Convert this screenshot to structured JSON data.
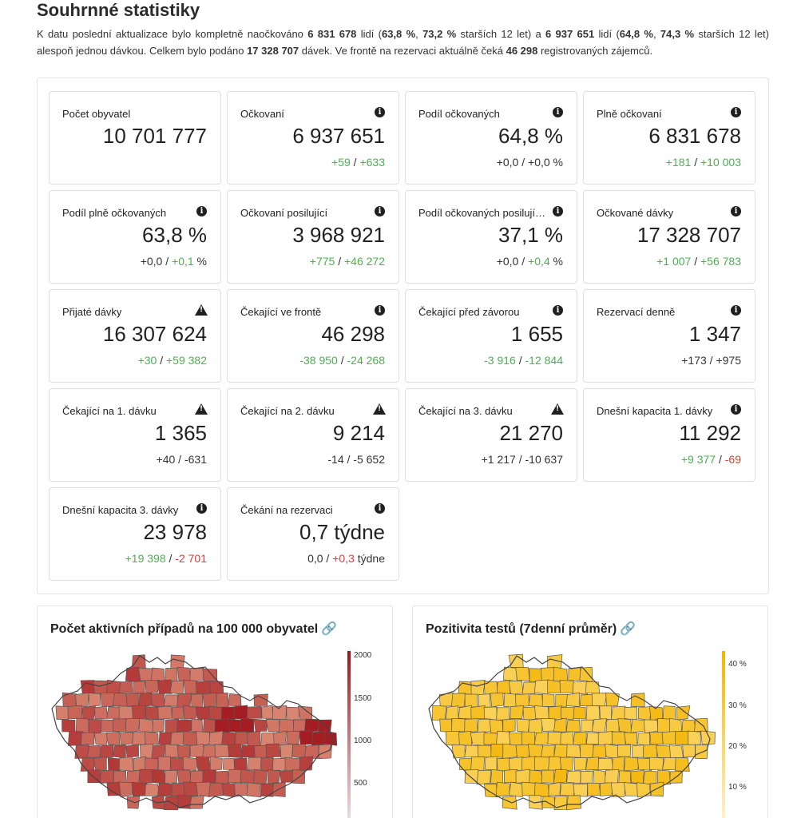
{
  "page": {
    "title": "Souhrnné statistiky"
  },
  "intro": {
    "t1": "K datu poslední aktualizace bylo kompletně naočkováno ",
    "fully": "6 831 678",
    "t2": " lidí (",
    "fully_pct": "63,8 %",
    "t3": ", ",
    "fully_pct12": "73,2 %",
    "t4": " starších 12 let) a ",
    "vacc": "6 937 651",
    "t5": " lidí (",
    "vacc_pct": "64,8 %",
    "t6": ", ",
    "vacc_pct12": "74,3 %",
    "t7": " starších 12 let) alespoň jednou dávkou. Celkem bylo podáno ",
    "doses": "17 328 707",
    "t8": " dávek. Ve frontě na rezervaci aktuálně čeká ",
    "queue": "46 298",
    "t9": " registrovaných zájemců."
  },
  "cards": [
    {
      "label": "Počet obyvatel",
      "icon": "none",
      "value": "10 701 777",
      "d1": "",
      "d1c": "n",
      "sep": "",
      "d2": "",
      "d2c": "n"
    },
    {
      "label": "Očkovaní",
      "icon": "info",
      "value": "6 937 651",
      "d1": "+59",
      "d1c": "g",
      "sep": " / ",
      "d2": "+633",
      "d2c": "g"
    },
    {
      "label": "Podíl očkovaných",
      "icon": "info",
      "value": "64,8 %",
      "d1": "+0,0",
      "d1c": "n",
      "sep": " / ",
      "d2": "+0,0 %",
      "d2c": "n"
    },
    {
      "label": "Plně očkovaní",
      "icon": "info",
      "value": "6 831 678",
      "d1": "+181",
      "d1c": "g",
      "sep": " / ",
      "d2": "+10 003",
      "d2c": "g"
    },
    {
      "label": "Podíl plně očkovaných",
      "icon": "info",
      "value": "63,8 %",
      "d1": "+0,0",
      "d1c": "n",
      "sep": " / ",
      "d2": "+0,1",
      "d2c": "g",
      "suffix": " %"
    },
    {
      "label": "Očkovaní posilující",
      "icon": "info",
      "value": "3 968 921",
      "d1": "+775",
      "d1c": "g",
      "sep": " / ",
      "d2": "+46 272",
      "d2c": "g"
    },
    {
      "label": "Podíl očkovaných posilujícími",
      "icon": "info",
      "value": "37,1 %",
      "d1": "+0,0",
      "d1c": "n",
      "sep": " / ",
      "d2": "+0,4",
      "d2c": "g",
      "suffix": " %"
    },
    {
      "label": "Očkované dávky",
      "icon": "info",
      "value": "17 328 707",
      "d1": "+1 007",
      "d1c": "g",
      "sep": " / ",
      "d2": "+56 783",
      "d2c": "g"
    },
    {
      "label": "Přijaté dávky",
      "icon": "warn",
      "value": "16 307 624",
      "d1": "+30",
      "d1c": "g",
      "sep": " / ",
      "d2": "+59 382",
      "d2c": "g"
    },
    {
      "label": "Čekající ve frontě",
      "icon": "info",
      "value": "46 298",
      "d1": "-38 950",
      "d1c": "g",
      "sep": " / ",
      "d2": "-24 268",
      "d2c": "g"
    },
    {
      "label": "Čekající před závorou",
      "icon": "info",
      "value": "1 655",
      "d1": "-3 916",
      "d1c": "g",
      "sep": " / ",
      "d2": "-12 844",
      "d2c": "g"
    },
    {
      "label": "Rezervací denně",
      "icon": "info",
      "value": "1 347",
      "d1": "+173",
      "d1c": "n",
      "sep": " / ",
      "d2": "+975",
      "d2c": "n"
    },
    {
      "label": "Čekající na 1. dávku",
      "icon": "warn",
      "value": "1 365",
      "d1": "+40",
      "d1c": "n",
      "sep": " / ",
      "d2": "-631",
      "d2c": "n"
    },
    {
      "label": "Čekající na 2. dávku",
      "icon": "warn",
      "value": "9 214",
      "d1": "-14",
      "d1c": "n",
      "sep": " / ",
      "d2": "-5 652",
      "d2c": "n"
    },
    {
      "label": "Čekající na 3. dávku",
      "icon": "warn",
      "value": "21 270",
      "d1": "+1 217",
      "d1c": "n",
      "sep": " / ",
      "d2": "-10 637",
      "d2c": "n"
    },
    {
      "label": "Dnešní kapacita 1. dávky",
      "icon": "info",
      "value": "11 292",
      "d1": "+9 377",
      "d1c": "g",
      "sep": " / ",
      "d2": "-69",
      "d2c": "r"
    },
    {
      "label": "Dnešní kapacita 3. dávky",
      "icon": "info",
      "value": "23 978",
      "d1": "+19 398",
      "d1c": "g",
      "sep": " / ",
      "d2": "-2 701",
      "d2c": "r"
    },
    {
      "label": "Čekání na rezervaci",
      "icon": "info",
      "value": "0,7 týdne",
      "d1": "0,0",
      "d1c": "n",
      "sep": " / ",
      "d2": "+0,3",
      "d2c": "r",
      "suffix": " týdne"
    }
  ],
  "maps": [
    {
      "title": "Počet aktivních případů na 100 000 obyvatel",
      "link_icon": "link-icon",
      "scale": [
        "2000",
        "1500",
        "1000",
        "500"
      ],
      "color_low": "#f6c3a0",
      "color_high": "#a1141b"
    },
    {
      "title": "Pozitivita testů (7denní průměr)",
      "link_icon": "link-icon",
      "scale": [
        "40 %",
        "30 %",
        "20 %",
        "10 %"
      ],
      "color_low": "#fde9a0",
      "color_high": "#f4b400"
    }
  ]
}
